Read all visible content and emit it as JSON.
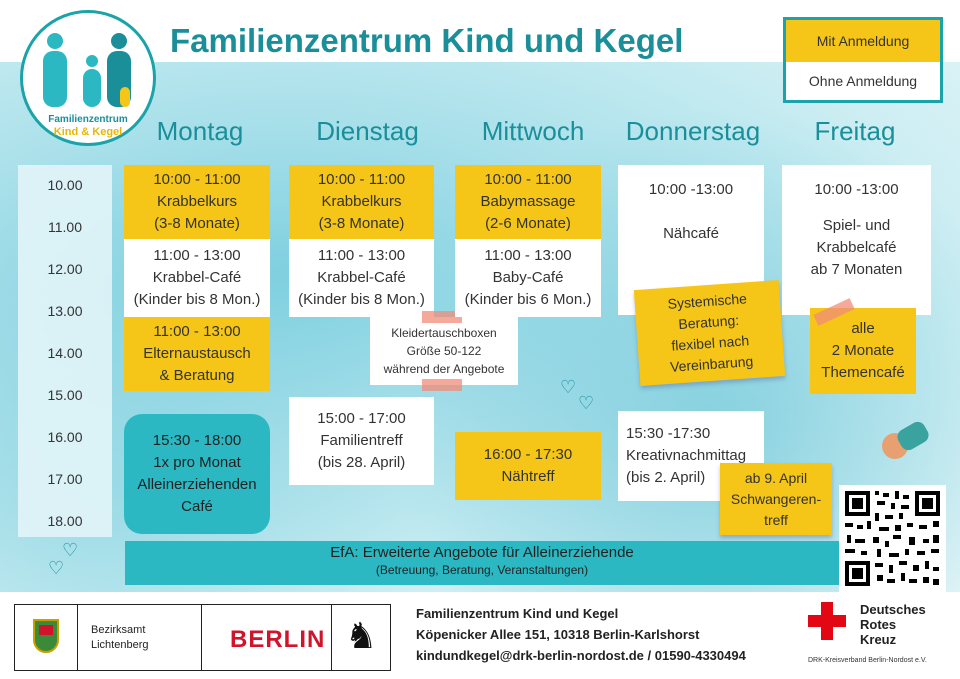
{
  "header": {
    "title": "Familienzentrum Kind und Kegel",
    "logo_line1": "Familienzentrum",
    "logo_line2": "Kind & Kegel"
  },
  "legend": {
    "with_registration": "Mit Anmeldung",
    "without_registration": "Ohne Anmeldung",
    "with_color": "#f5c518",
    "without_color": "#ffffff"
  },
  "days": [
    "Montag",
    "Dienstag",
    "Mittwoch",
    "Donnerstag",
    "Freitag"
  ],
  "times": [
    "10.00",
    "11.00",
    "12.00",
    "13.00",
    "14.00",
    "15.00",
    "16.00",
    "17.00",
    "18.00"
  ],
  "events": {
    "mon_1": [
      "10:00 - 11:00",
      "Krabbelkurs",
      "(3-8 Monate)"
    ],
    "mon_2": [
      "11:00 - 13:00",
      "Krabbel-Café",
      "(Kinder bis 8 Mon.)"
    ],
    "mon_3": [
      "11:00 - 13:00",
      "Elternaustausch",
      "& Beratung"
    ],
    "mon_4": [
      "15:30 - 18:00",
      "1x pro Monat",
      "Alleinerziehenden",
      "Café"
    ],
    "tue_1": [
      "10:00 - 11:00",
      "Krabbelkurs",
      "(3-8 Monate)"
    ],
    "tue_2": [
      "11:00 - 13:00",
      "Krabbel-Café",
      "(Kinder bis 8 Mon.)"
    ],
    "tue_3": [
      "15:00 - 17:00",
      "Familientreff",
      "(bis 28. April)"
    ],
    "wed_1": [
      "10:00 - 11:00",
      "Babymassage",
      "(2-6 Monate)"
    ],
    "wed_2": [
      "11:00 - 13:00",
      "Baby-Café",
      "(Kinder bis 6 Mon.)"
    ],
    "wed_3": [
      "16:00 - 17:30",
      "Nähtreff"
    ],
    "thu_1": [
      "10:00 -13:00",
      "",
      "Nähcafé"
    ],
    "thu_2": [
      "15:30 -17:30",
      "Kreativnachmittag",
      "(bis 2. April)"
    ],
    "fri_1": [
      "10:00 -13:00",
      "",
      "Spiel- und",
      "Krabbelcafé",
      "ab 7 Monaten"
    ]
  },
  "notes": {
    "exchange": [
      "Kleidertauschboxen",
      "Größe 50-122",
      "während der Angebote"
    ],
    "systemic": [
      "Systemische",
      "Beratung:",
      "flexibel nach",
      "Vereinbarung"
    ],
    "theme": [
      "alle",
      "2 Monate",
      "Themencafé"
    ],
    "pregnant": [
      "ab 9. April",
      "Schwangeren-",
      "treff"
    ]
  },
  "efa": {
    "title": "EfA: Erweiterte Angebote für Alleinerziehende",
    "subtitle": "(Betreuung, Beratung, Veranstaltungen)"
  },
  "footer": {
    "district_line1": "Bezirksamt",
    "district_line2": "Lichtenberg",
    "berlin": "BERLIN",
    "address_name": "Familienzentrum Kind und Kegel",
    "address_street": "Köpenicker Allee 151, 10318 Berlin-Karlshorst",
    "address_contact": "kindundkegel@drk-berlin-nordost.de / 01590-4330494",
    "drk_line1": "Deutsches",
    "drk_line2": "Rotes",
    "drk_line3": "Kreuz",
    "drk_sub": "DRK-Kreisverband Berlin-Nordost e.V."
  }
}
